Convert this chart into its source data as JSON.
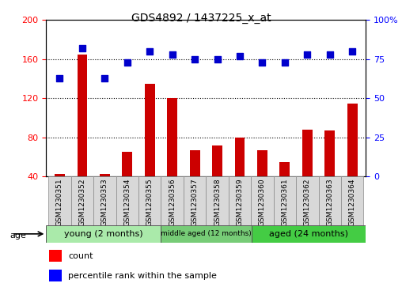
{
  "title": "GDS4892 / 1437225_x_at",
  "samples": [
    "GSM1230351",
    "GSM1230352",
    "GSM1230353",
    "GSM1230354",
    "GSM1230355",
    "GSM1230356",
    "GSM1230357",
    "GSM1230358",
    "GSM1230359",
    "GSM1230360",
    "GSM1230361",
    "GSM1230362",
    "GSM1230363",
    "GSM1230364"
  ],
  "counts": [
    43,
    165,
    43,
    65,
    135,
    120,
    67,
    72,
    80,
    67,
    55,
    88,
    87,
    115
  ],
  "percentile_ranks": [
    63,
    82,
    63,
    73,
    80,
    78,
    75,
    75,
    77,
    73,
    73,
    78,
    78,
    80
  ],
  "groups": [
    {
      "label": "young (2 months)",
      "start": 0,
      "end": 5,
      "color": "#AAEAAA",
      "text_size": 8
    },
    {
      "label": "middle aged (12 months)",
      "start": 5,
      "end": 9,
      "color": "#77CC77",
      "text_size": 6.5
    },
    {
      "label": "aged (24 months)",
      "start": 9,
      "end": 14,
      "color": "#44CC44",
      "text_size": 8
    }
  ],
  "bar_color": "#CC0000",
  "dot_color": "#0000CC",
  "left_ylim": [
    40,
    200
  ],
  "right_ylim": [
    0,
    100
  ],
  "left_yticks": [
    40,
    80,
    120,
    160,
    200
  ],
  "right_yticks": [
    0,
    25,
    50,
    75,
    100
  ],
  "right_yticklabels": [
    "0",
    "25",
    "50",
    "75",
    "100%"
  ],
  "dotted_lines": [
    80,
    120,
    160
  ],
  "title_fontsize": 10,
  "bar_width": 0.45,
  "dot_size": 30,
  "age_label": "age",
  "legend_count_label": "count",
  "legend_percentile_label": "percentile rank within the sample"
}
